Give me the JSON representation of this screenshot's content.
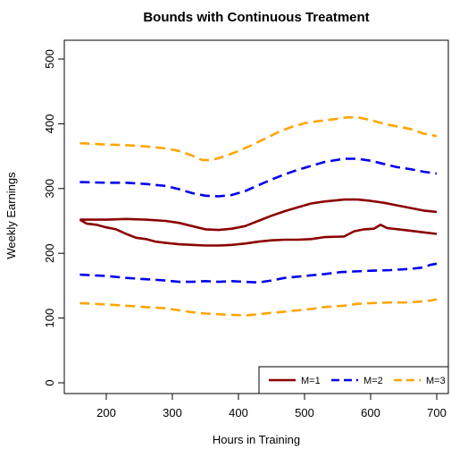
{
  "chart_data": {
    "type": "line",
    "title": "Bounds with Continuous Treatment",
    "xlabel": "Hours in Training",
    "ylabel": "Weekly Earnings",
    "xlim": [
      160,
      700
    ],
    "ylim": [
      0,
      500
    ],
    "xticks": [
      200,
      300,
      400,
      500,
      600,
      700
    ],
    "yticks": [
      0,
      100,
      200,
      300,
      400,
      500
    ],
    "grid": false,
    "legend_position": "bottom-right",
    "colors": {
      "M=1": "#8b0000",
      "M=2": "#0000ee",
      "M=3": "#ffa500"
    },
    "series": [
      {
        "name": "M=1",
        "style": "solid",
        "bound": "upper",
        "points": [
          [
            160,
            252
          ],
          [
            200,
            252
          ],
          [
            230,
            253
          ],
          [
            260,
            252
          ],
          [
            290,
            250
          ],
          [
            310,
            247
          ],
          [
            330,
            242
          ],
          [
            350,
            237
          ],
          [
            370,
            236
          ],
          [
            390,
            238
          ],
          [
            410,
            242
          ],
          [
            430,
            250
          ],
          [
            450,
            258
          ],
          [
            470,
            265
          ],
          [
            490,
            271
          ],
          [
            510,
            277
          ],
          [
            530,
            280
          ],
          [
            560,
            283
          ],
          [
            580,
            283
          ],
          [
            600,
            281
          ],
          [
            620,
            278
          ],
          [
            640,
            274
          ],
          [
            660,
            270
          ],
          [
            680,
            266
          ],
          [
            700,
            264
          ]
        ]
      },
      {
        "name": "M=1",
        "style": "solid",
        "bound": "lower",
        "points": [
          [
            160,
            252
          ],
          [
            170,
            246
          ],
          [
            185,
            244
          ],
          [
            200,
            240
          ],
          [
            215,
            237
          ],
          [
            230,
            230
          ],
          [
            245,
            224
          ],
          [
            260,
            222
          ],
          [
            275,
            218
          ],
          [
            290,
            216
          ],
          [
            310,
            214
          ],
          [
            330,
            213
          ],
          [
            350,
            212
          ],
          [
            370,
            212
          ],
          [
            390,
            213
          ],
          [
            410,
            215
          ],
          [
            430,
            218
          ],
          [
            450,
            220
          ],
          [
            470,
            221
          ],
          [
            490,
            221
          ],
          [
            510,
            222
          ],
          [
            530,
            225
          ],
          [
            560,
            226
          ],
          [
            575,
            234
          ],
          [
            590,
            237
          ],
          [
            605,
            238
          ],
          [
            615,
            244
          ],
          [
            625,
            239
          ],
          [
            650,
            236
          ],
          [
            675,
            233
          ],
          [
            700,
            230
          ]
        ]
      },
      {
        "name": "M=2",
        "style": "dashed",
        "bound": "upper",
        "points": [
          [
            160,
            310
          ],
          [
            200,
            309
          ],
          [
            230,
            309
          ],
          [
            260,
            307
          ],
          [
            290,
            304
          ],
          [
            310,
            299
          ],
          [
            330,
            293
          ],
          [
            350,
            289
          ],
          [
            370,
            288
          ],
          [
            390,
            290
          ],
          [
            410,
            296
          ],
          [
            430,
            305
          ],
          [
            450,
            314
          ],
          [
            470,
            322
          ],
          [
            490,
            329
          ],
          [
            510,
            335
          ],
          [
            530,
            341
          ],
          [
            560,
            346
          ],
          [
            580,
            346
          ],
          [
            600,
            343
          ],
          [
            620,
            338
          ],
          [
            640,
            333
          ],
          [
            660,
            330
          ],
          [
            680,
            326
          ],
          [
            700,
            323
          ]
        ]
      },
      {
        "name": "M=2",
        "style": "dashed",
        "bound": "lower",
        "points": [
          [
            160,
            167
          ],
          [
            200,
            165
          ],
          [
            230,
            162
          ],
          [
            260,
            160
          ],
          [
            290,
            158
          ],
          [
            310,
            156
          ],
          [
            330,
            156
          ],
          [
            350,
            157
          ],
          [
            370,
            156
          ],
          [
            390,
            157
          ],
          [
            410,
            156
          ],
          [
            430,
            155
          ],
          [
            450,
            158
          ],
          [
            470,
            162
          ],
          [
            490,
            164
          ],
          [
            510,
            166
          ],
          [
            530,
            168
          ],
          [
            555,
            171
          ],
          [
            575,
            172
          ],
          [
            600,
            173
          ],
          [
            630,
            174
          ],
          [
            660,
            176
          ],
          [
            680,
            178
          ],
          [
            690,
            182
          ],
          [
            700,
            184
          ]
        ]
      },
      {
        "name": "M=3",
        "style": "dashed",
        "bound": "upper",
        "points": [
          [
            160,
            370
          ],
          [
            200,
            368
          ],
          [
            230,
            367
          ],
          [
            260,
            365
          ],
          [
            290,
            362
          ],
          [
            310,
            358
          ],
          [
            330,
            351
          ],
          [
            345,
            344
          ],
          [
            360,
            344
          ],
          [
            380,
            350
          ],
          [
            400,
            358
          ],
          [
            420,
            367
          ],
          [
            440,
            377
          ],
          [
            460,
            387
          ],
          [
            480,
            395
          ],
          [
            500,
            401
          ],
          [
            520,
            404
          ],
          [
            545,
            407
          ],
          [
            565,
            410
          ],
          [
            580,
            410
          ],
          [
            600,
            406
          ],
          [
            620,
            400
          ],
          [
            640,
            396
          ],
          [
            660,
            392
          ],
          [
            680,
            385
          ],
          [
            700,
            381
          ]
        ]
      },
      {
        "name": "M=3",
        "style": "dashed",
        "bound": "lower",
        "points": [
          [
            160,
            123
          ],
          [
            200,
            121
          ],
          [
            230,
            119
          ],
          [
            260,
            117
          ],
          [
            290,
            115
          ],
          [
            310,
            112
          ],
          [
            330,
            109
          ],
          [
            350,
            107
          ],
          [
            370,
            106
          ],
          [
            390,
            105
          ],
          [
            410,
            104
          ],
          [
            430,
            106
          ],
          [
            450,
            108
          ],
          [
            470,
            110
          ],
          [
            490,
            112
          ],
          [
            510,
            114
          ],
          [
            530,
            117
          ],
          [
            560,
            119
          ],
          [
            580,
            122
          ],
          [
            600,
            123
          ],
          [
            630,
            124
          ],
          [
            650,
            124
          ],
          [
            670,
            125
          ],
          [
            690,
            127
          ],
          [
            700,
            129
          ]
        ]
      }
    ],
    "legend": [
      "M=1",
      "M=2",
      "M=3"
    ]
  }
}
